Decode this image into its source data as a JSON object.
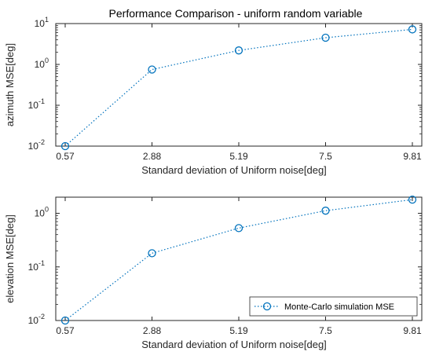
{
  "figure": {
    "title": "Performance Comparison  - uniform random variable",
    "line_color": "#0072BD"
  },
  "chart_data": [
    {
      "type": "line",
      "yscale": "log",
      "x": [
        0.57,
        2.88,
        5.19,
        7.5,
        9.81
      ],
      "xticklabels": [
        "0.57",
        "2.88",
        "5.19",
        "7.5",
        "9.81"
      ],
      "xlabel": "Standard deviation of Uniform noise[deg]",
      "ylabel": "azimuth MSE[deg]",
      "ylim": [
        0.01,
        10
      ],
      "yticks": [
        0.01,
        0.1,
        1,
        10
      ],
      "series": [
        {
          "values": [
            0.01,
            0.75,
            2.2,
            4.5,
            7.2
          ],
          "color": "#0072BD",
          "marker": "circle",
          "linestyle": "dotted"
        }
      ],
      "legend": null
    },
    {
      "type": "line",
      "yscale": "log",
      "x": [
        0.57,
        2.88,
        5.19,
        7.5,
        9.81
      ],
      "xticklabels": [
        "0.57",
        "2.88",
        "5.19",
        "7.5",
        "9.81"
      ],
      "xlabel": "Standard deviation of Uniform noise[deg]",
      "ylabel": "elevation MSE[deg]",
      "ylim": [
        0.01,
        2
      ],
      "yticks": [
        0.01,
        0.1,
        1
      ],
      "series": [
        {
          "name": "Monte-Carlo simulation MSE",
          "values": [
            0.01,
            0.18,
            0.53,
            1.12,
            1.8
          ],
          "color": "#0072BD",
          "marker": "circle",
          "linestyle": "dotted"
        }
      ],
      "legend": "bottom-right"
    }
  ]
}
